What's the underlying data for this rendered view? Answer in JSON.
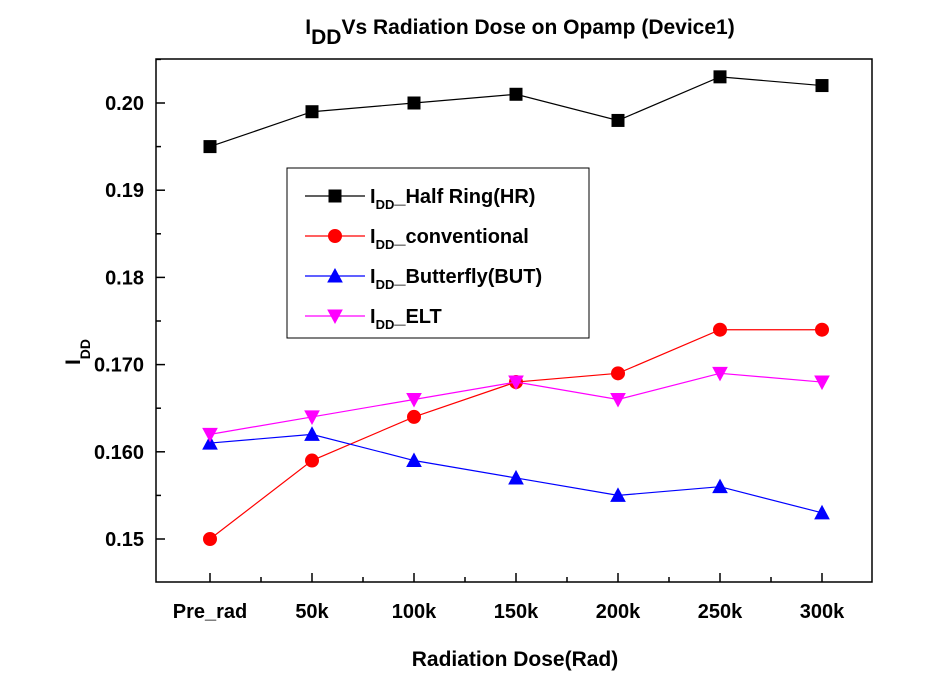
{
  "chart_data": {
    "type": "line",
    "title_main": "I",
    "title_sub": "DD",
    "title_rest": "Vs Radiation Dose on Opamp (Device1)",
    "xlabel": "Radiation Dose(Rad)",
    "ylabel_main": "I",
    "ylabel_sub": "DD",
    "categories": [
      "Pre_rad",
      "50k",
      "100k",
      "150k",
      "200k",
      "250k",
      "300k"
    ],
    "ylim": [
      0.145,
      0.205
    ],
    "yticks": [
      {
        "value": 0.15,
        "label": "0.15"
      },
      {
        "value": 0.16,
        "label": "0.160"
      },
      {
        "value": 0.17,
        "label": "0.170"
      },
      {
        "value": 0.18,
        "label": "0.18"
      },
      {
        "value": 0.19,
        "label": "0.19"
      },
      {
        "value": 0.2,
        "label": "0.20"
      }
    ],
    "grid": false,
    "legend_position": "upper-center",
    "series": [
      {
        "name_main": "I",
        "name_sub": "DD",
        "name_rest": "Half Ring(HR)",
        "color": "#000000",
        "marker": "square",
        "values": [
          0.195,
          0.199,
          0.2,
          0.201,
          0.198,
          0.203,
          0.202
        ]
      },
      {
        "name_main": "I",
        "name_sub": "DD",
        "name_rest": "conventional",
        "color": "#ff0000",
        "marker": "circle",
        "values": [
          0.15,
          0.159,
          0.164,
          0.168,
          0.169,
          0.174,
          0.174
        ]
      },
      {
        "name_main": "I",
        "name_sub": "DD",
        "name_rest": "Butterfly(BUT)",
        "color": "#0000ff",
        "marker": "triangle-up",
        "values": [
          0.161,
          0.162,
          0.159,
          0.157,
          0.155,
          0.156,
          0.153
        ]
      },
      {
        "name_main": "I",
        "name_sub": "DD",
        "name_rest": "ELT",
        "color": "#ff00ff",
        "marker": "triangle-down",
        "values": [
          0.162,
          0.164,
          0.166,
          0.168,
          0.166,
          0.169,
          0.168
        ]
      }
    ]
  }
}
